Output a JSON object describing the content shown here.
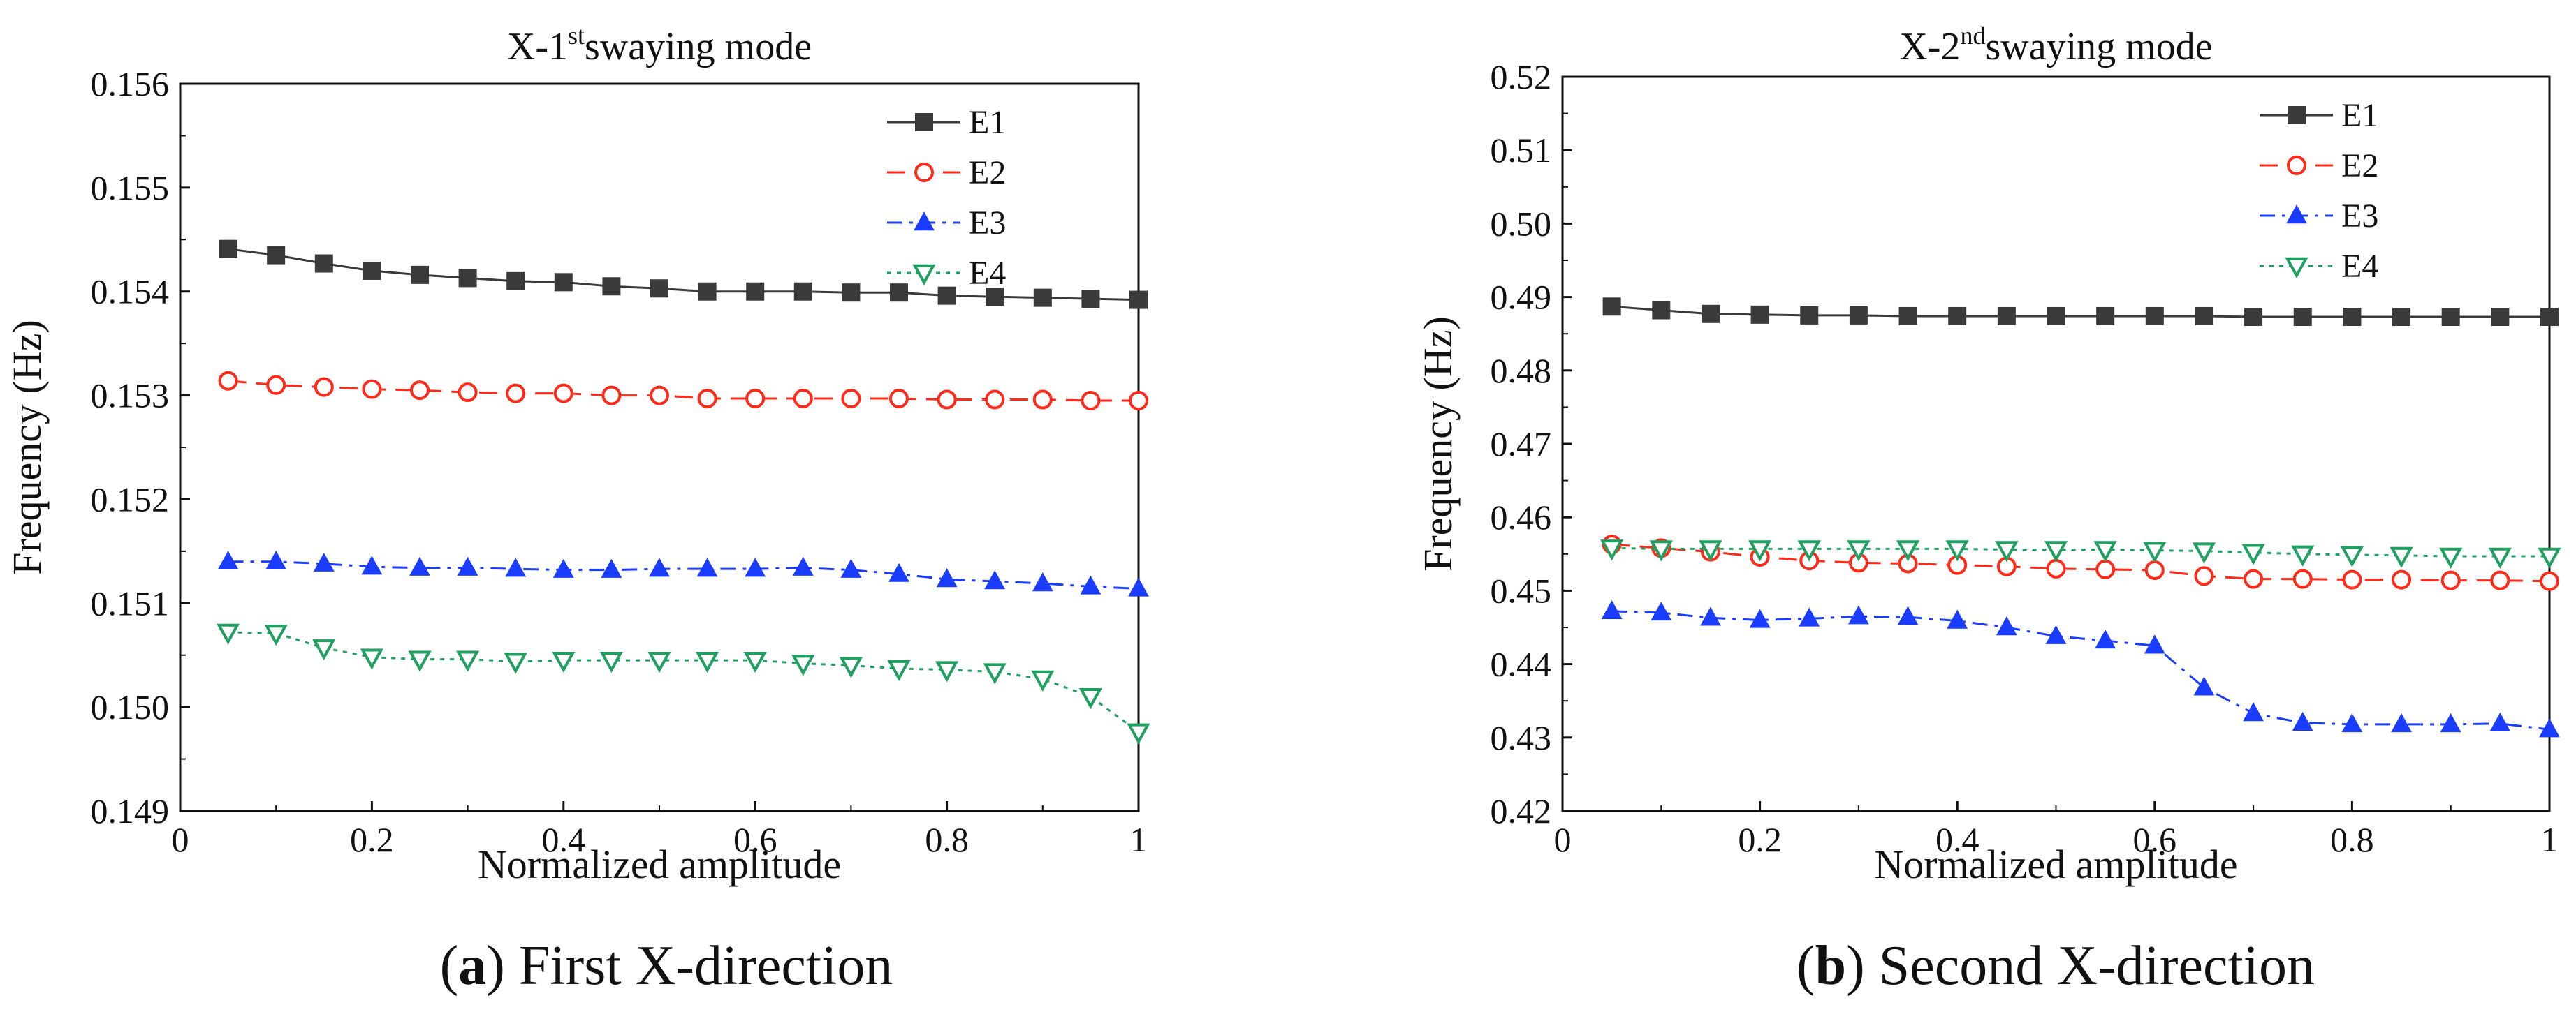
{
  "chart_data": [
    {
      "type": "line",
      "title_prefix": "X-1",
      "title_sup": "st",
      "title_suffix": "swaying mode",
      "xlabel": "Normalized amplitude",
      "ylabel": "Frequency (Hz)",
      "xlim": [
        0,
        1
      ],
      "ylim": [
        0.149,
        0.156
      ],
      "x_ticks": [
        0,
        0.2,
        0.4,
        0.6,
        0.8,
        1
      ],
      "x_tick_labels": [
        "0",
        "0.2",
        "0.4",
        "0.6",
        "0.8",
        "1"
      ],
      "y_ticks": [
        0.149,
        0.15,
        0.151,
        0.152,
        0.153,
        0.154,
        0.155,
        0.156
      ],
      "y_tick_labels": [
        "0.149",
        "0.150",
        "0.151",
        "0.152",
        "0.153",
        "0.154",
        "0.155",
        "0.156"
      ],
      "x": [
        0.05,
        0.1,
        0.15,
        0.2,
        0.25,
        0.3,
        0.35,
        0.4,
        0.45,
        0.5,
        0.55,
        0.6,
        0.65,
        0.7,
        0.75,
        0.8,
        0.85,
        0.9,
        0.95,
        1.0
      ],
      "series": [
        {
          "name": "E1",
          "color": "#3a3a3a",
          "marker": "square",
          "dash": "solid",
          "values": [
            0.15441,
            0.15435,
            0.15427,
            0.1542,
            0.15416,
            0.15413,
            0.1541,
            0.15409,
            0.15405,
            0.15403,
            0.154,
            0.154,
            0.154,
            0.15399,
            0.15399,
            0.15396,
            0.15395,
            0.15394,
            0.15393,
            0.15392
          ]
        },
        {
          "name": "E2",
          "color": "#ff2a1a",
          "marker": "circle",
          "dash": "dashed",
          "values": [
            0.15314,
            0.1531,
            0.15308,
            0.15306,
            0.15305,
            0.15303,
            0.15302,
            0.15302,
            0.153,
            0.153,
            0.15297,
            0.15297,
            0.15297,
            0.15297,
            0.15297,
            0.15296,
            0.15296,
            0.15296,
            0.15295,
            0.15295
          ]
        },
        {
          "name": "E3",
          "color": "#1a3cff",
          "marker": "triangle",
          "dash": "dashdot",
          "values": [
            0.1514,
            0.1514,
            0.15138,
            0.15135,
            0.15134,
            0.15134,
            0.15133,
            0.15132,
            0.15132,
            0.15133,
            0.15133,
            0.15133,
            0.15134,
            0.15132,
            0.15128,
            0.15123,
            0.15121,
            0.15119,
            0.15116,
            0.15114
          ]
        },
        {
          "name": "E4",
          "color": "#1fa060",
          "marker": "triangle-down",
          "dash": "dotted",
          "values": [
            0.15072,
            0.15071,
            0.15057,
            0.15048,
            0.15046,
            0.15046,
            0.15044,
            0.15045,
            0.15045,
            0.15045,
            0.15045,
            0.15045,
            0.15042,
            0.1504,
            0.15037,
            0.15036,
            0.15034,
            0.15027,
            0.1501,
            0.14976
          ]
        }
      ],
      "caption_label": "(a)",
      "caption_text": " First X-direction"
    },
    {
      "type": "line",
      "title_prefix": "X-2",
      "title_sup": "nd",
      "title_suffix": "swaying mode",
      "xlabel": "Normalized amplitude",
      "ylabel": "Frequency (Hz)",
      "xlim": [
        0,
        1
      ],
      "ylim": [
        0.42,
        0.52
      ],
      "x_ticks": [
        0,
        0.2,
        0.4,
        0.6,
        0.8,
        1
      ],
      "x_tick_labels": [
        "0",
        "0.2",
        "0.4",
        "0.6",
        "0.8",
        "1"
      ],
      "y_ticks": [
        0.42,
        0.43,
        0.44,
        0.45,
        0.46,
        0.47,
        0.48,
        0.49,
        0.5,
        0.51,
        0.52
      ],
      "y_tick_labels": [
        "0.42",
        "0.43",
        "0.44",
        "0.45",
        "0.46",
        "0.47",
        "0.48",
        "0.49",
        "0.50",
        "0.51",
        "0.52"
      ],
      "x": [
        0.05,
        0.1,
        0.15,
        0.2,
        0.25,
        0.3,
        0.35,
        0.4,
        0.45,
        0.5,
        0.55,
        0.6,
        0.65,
        0.7,
        0.75,
        0.8,
        0.85,
        0.9,
        0.95,
        1.0
      ],
      "series": [
        {
          "name": "E1",
          "color": "#3a3a3a",
          "marker": "square",
          "dash": "solid",
          "values": [
            0.4887,
            0.4882,
            0.4877,
            0.4876,
            0.4875,
            0.4875,
            0.4874,
            0.4874,
            0.4874,
            0.4874,
            0.4874,
            0.4874,
            0.4874,
            0.4873,
            0.4873,
            0.4873,
            0.4873,
            0.4873,
            0.4873,
            0.4873
          ]
        },
        {
          "name": "E2",
          "color": "#ff2a1a",
          "marker": "circle",
          "dash": "dashed",
          "values": [
            0.4563,
            0.4558,
            0.4553,
            0.4546,
            0.4541,
            0.4538,
            0.4537,
            0.4535,
            0.4533,
            0.453,
            0.4529,
            0.4528,
            0.452,
            0.4516,
            0.4516,
            0.4515,
            0.4515,
            0.4514,
            0.4514,
            0.4513
          ]
        },
        {
          "name": "E3",
          "color": "#1a3cff",
          "marker": "triangle",
          "dash": "dashdot",
          "values": [
            0.4472,
            0.447,
            0.4463,
            0.446,
            0.4462,
            0.4465,
            0.4464,
            0.4459,
            0.445,
            0.4438,
            0.4432,
            0.4425,
            0.4368,
            0.4333,
            0.432,
            0.4318,
            0.4318,
            0.4318,
            0.4319,
            0.4311
          ]
        },
        {
          "name": "E4",
          "color": "#1fa060",
          "marker": "triangle-down",
          "dash": "dotted",
          "values": [
            0.4558,
            0.4557,
            0.4557,
            0.4557,
            0.4557,
            0.4557,
            0.4557,
            0.4557,
            0.4556,
            0.4556,
            0.4556,
            0.4555,
            0.4554,
            0.4552,
            0.455,
            0.4549,
            0.4548,
            0.4547,
            0.4547,
            0.4547
          ]
        }
      ],
      "caption_label": "(b)",
      "caption_text": " Second X-direction"
    }
  ]
}
